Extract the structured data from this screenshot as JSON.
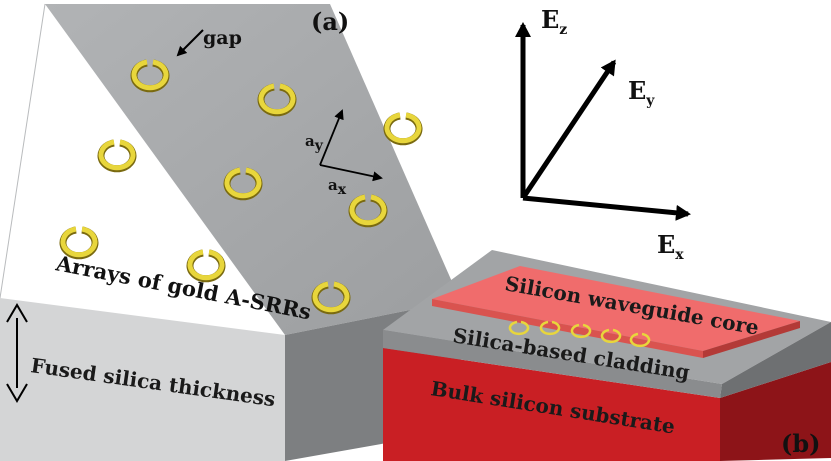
{
  "panel_a": {
    "label": "(a)",
    "gap_label": "gap",
    "lattice": {
      "ax": "a",
      "ax_sub": "x",
      "ay": "a",
      "ay_sub": "y"
    },
    "array_label": "Arrays of gold A-SRRs",
    "thickness_label": "Fused silica thickness"
  },
  "axes": {
    "ez": "E",
    "ez_sub": "z",
    "ey": "E",
    "ey_sub": "y",
    "ex": "E",
    "ex_sub": "x"
  },
  "panel_b": {
    "label": "(b)",
    "core": "Silicon waveguide core",
    "cladding": "Silica-based cladding",
    "substrate": "Bulk silicon substrate"
  },
  "colors": {
    "slab_top": "#a6a8aa",
    "slab_front": "#d4d5d6",
    "slab_side": "#7d7f81",
    "gold": "#e8d63c",
    "core": "#f06c6c",
    "substrate": "#c91f24",
    "cladding": "#a2a4a6"
  },
  "icons": [
    "gold-ring-icon",
    "double-arrow-icon",
    "axis-arrow-icon"
  ]
}
